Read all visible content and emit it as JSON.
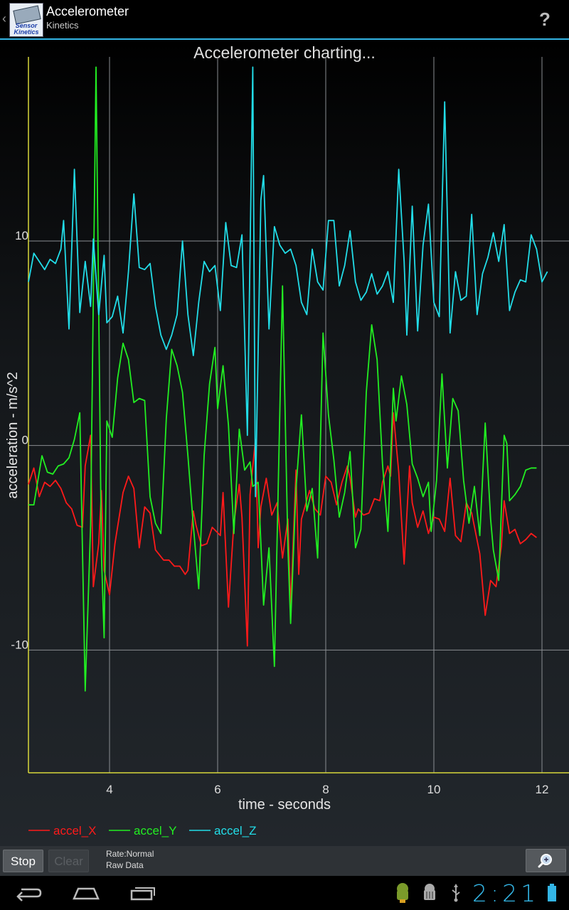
{
  "app": {
    "title": "Accelerometer",
    "subtitle": "Kinetics",
    "icon_text_1": "Sensor",
    "icon_text_2": "Kinetics",
    "help_label": "?"
  },
  "status": {
    "time": "2:21"
  },
  "controls": {
    "stop_label": "Stop",
    "clear_label": "Clear",
    "rate_label": "Rate:Normal",
    "mode_label": "Raw Data"
  },
  "colors": {
    "x": "#ff1a1a",
    "y": "#22ee22",
    "z": "#22dde8",
    "accent": "#33b5e5"
  },
  "chart_data": {
    "type": "line",
    "title": "Accelerometer charting...",
    "xlabel": "time - seconds",
    "ylabel": "acceleration - m/s^2",
    "xlim": [
      2.5,
      12.5
    ],
    "ylim": [
      -16,
      19
    ],
    "xticks": [
      4,
      6,
      8,
      10,
      12
    ],
    "yticks": [
      10,
      0,
      -10
    ],
    "legend_position": "bottom-left",
    "grid": true,
    "series": [
      {
        "name": "accel_X",
        "color": "#ff1a1a",
        "points": [
          [
            2.5,
            -1.9
          ],
          [
            2.6,
            -1.1
          ],
          [
            2.7,
            -2.5
          ],
          [
            2.8,
            -1.8
          ],
          [
            2.9,
            -2.0
          ],
          [
            3.0,
            -1.7
          ],
          [
            3.1,
            -2.1
          ],
          [
            3.2,
            -2.8
          ],
          [
            3.3,
            -3.1
          ],
          [
            3.4,
            -3.9
          ],
          [
            3.5,
            -4.0
          ],
          [
            3.55,
            -1.0
          ],
          [
            3.65,
            0.5
          ],
          [
            3.7,
            -6.9
          ],
          [
            3.8,
            -4.8
          ],
          [
            3.85,
            -2.2
          ],
          [
            3.9,
            -6.1
          ],
          [
            4.0,
            -7.3
          ],
          [
            4.1,
            -4.8
          ],
          [
            4.25,
            -2.3
          ],
          [
            4.35,
            -1.5
          ],
          [
            4.45,
            -2.1
          ],
          [
            4.55,
            -5.0
          ],
          [
            4.65,
            -3.0
          ],
          [
            4.75,
            -3.3
          ],
          [
            4.85,
            -5.1
          ],
          [
            5.0,
            -5.6
          ],
          [
            5.1,
            -5.6
          ],
          [
            5.2,
            -5.9
          ],
          [
            5.3,
            -5.9
          ],
          [
            5.4,
            -6.3
          ],
          [
            5.45,
            -6.1
          ],
          [
            5.55,
            -3.2
          ],
          [
            5.6,
            -3.9
          ],
          [
            5.7,
            -4.9
          ],
          [
            5.8,
            -4.8
          ],
          [
            5.9,
            -4.0
          ],
          [
            6.05,
            -4.4
          ],
          [
            6.1,
            -2.3
          ],
          [
            6.2,
            -7.9
          ],
          [
            6.3,
            -3.8
          ],
          [
            6.4,
            -1.9
          ],
          [
            6.45,
            -3.5
          ],
          [
            6.55,
            -9.8
          ],
          [
            6.6,
            -2.4
          ],
          [
            6.7,
            0.3
          ],
          [
            6.75,
            -5.0
          ],
          [
            6.8,
            -3.0
          ],
          [
            6.9,
            -1.6
          ],
          [
            7.0,
            -3.4
          ],
          [
            7.1,
            -2.8
          ],
          [
            7.2,
            -5.5
          ],
          [
            7.3,
            -3.6
          ],
          [
            7.35,
            -7.9
          ],
          [
            7.45,
            -1.2
          ],
          [
            7.5,
            -6.3
          ],
          [
            7.55,
            -3.6
          ],
          [
            7.7,
            -2.2
          ],
          [
            7.8,
            -3.1
          ],
          [
            7.9,
            -3.4
          ],
          [
            8.0,
            -1.5
          ],
          [
            8.1,
            -1.8
          ],
          [
            8.2,
            -2.9
          ],
          [
            8.3,
            -1.8
          ],
          [
            8.4,
            -1.0
          ],
          [
            8.45,
            -1.6
          ],
          [
            8.55,
            -3.5
          ],
          [
            8.6,
            -3.1
          ],
          [
            8.7,
            -3.4
          ],
          [
            8.8,
            -3.3
          ],
          [
            8.9,
            -2.6
          ],
          [
            9.0,
            -2.7
          ],
          [
            9.05,
            -1.8
          ],
          [
            9.15,
            -1.0
          ],
          [
            9.2,
            -1.5
          ],
          [
            9.25,
            1.6
          ],
          [
            9.35,
            -1.3
          ],
          [
            9.45,
            -5.8
          ],
          [
            9.55,
            -1.0
          ],
          [
            9.6,
            -2.8
          ],
          [
            9.7,
            -4.0
          ],
          [
            9.8,
            -3.2
          ],
          [
            9.9,
            -4.3
          ],
          [
            10.0,
            -3.5
          ],
          [
            10.1,
            -3.6
          ],
          [
            10.2,
            -4.2
          ],
          [
            10.3,
            -1.6
          ],
          [
            10.4,
            -4.4
          ],
          [
            10.5,
            -4.7
          ],
          [
            10.6,
            -2.8
          ],
          [
            10.7,
            -3.3
          ],
          [
            10.85,
            -5.3
          ],
          [
            10.95,
            -8.3
          ],
          [
            11.05,
            -6.6
          ],
          [
            11.15,
            -6.9
          ],
          [
            11.25,
            -4.9
          ],
          [
            11.3,
            -2.7
          ],
          [
            11.4,
            -4.3
          ],
          [
            11.5,
            -4.1
          ],
          [
            11.6,
            -4.8
          ],
          [
            11.7,
            -4.6
          ],
          [
            11.8,
            -4.3
          ],
          [
            11.9,
            -4.5
          ]
        ]
      },
      {
        "name": "accel_Y",
        "color": "#22ee22",
        "points": [
          [
            2.5,
            -2.9
          ],
          [
            2.6,
            -2.9
          ],
          [
            2.75,
            -0.5
          ],
          [
            2.85,
            -1.3
          ],
          [
            2.95,
            -1.4
          ],
          [
            3.05,
            -1.0
          ],
          [
            3.15,
            -0.9
          ],
          [
            3.25,
            -0.6
          ],
          [
            3.35,
            0.3
          ],
          [
            3.45,
            1.6
          ],
          [
            3.55,
            -12.0
          ],
          [
            3.65,
            -3.9
          ],
          [
            3.75,
            18.5
          ],
          [
            3.85,
            -5.3
          ],
          [
            3.9,
            -9.4
          ],
          [
            3.95,
            1.2
          ],
          [
            4.05,
            0.4
          ],
          [
            4.15,
            3.3
          ],
          [
            4.25,
            5.0
          ],
          [
            4.35,
            4.2
          ],
          [
            4.45,
            2.1
          ],
          [
            4.55,
            2.3
          ],
          [
            4.65,
            2.2
          ],
          [
            4.75,
            -2.5
          ],
          [
            4.85,
            -3.8
          ],
          [
            4.95,
            -4.3
          ],
          [
            5.05,
            1.3
          ],
          [
            5.15,
            4.7
          ],
          [
            5.25,
            3.9
          ],
          [
            5.35,
            2.6
          ],
          [
            5.45,
            -0.5
          ],
          [
            5.55,
            -3.9
          ],
          [
            5.65,
            -7.0
          ],
          [
            5.75,
            -0.5
          ],
          [
            5.85,
            3.0
          ],
          [
            5.95,
            4.8
          ],
          [
            6.0,
            1.8
          ],
          [
            6.1,
            3.9
          ],
          [
            6.2,
            1.0
          ],
          [
            6.3,
            -4.3
          ],
          [
            6.4,
            0.8
          ],
          [
            6.5,
            -1.2
          ],
          [
            6.6,
            -0.8
          ],
          [
            6.65,
            -2.0
          ],
          [
            6.75,
            -1.8
          ],
          [
            6.85,
            -7.8
          ],
          [
            6.95,
            -5.0
          ],
          [
            7.05,
            -10.8
          ],
          [
            7.2,
            7.8
          ],
          [
            7.3,
            -5.0
          ],
          [
            7.35,
            -8.7
          ],
          [
            7.45,
            -2.1
          ],
          [
            7.55,
            1.5
          ],
          [
            7.65,
            -3.2
          ],
          [
            7.75,
            -2.1
          ],
          [
            7.85,
            -5.5
          ],
          [
            7.95,
            5.5
          ],
          [
            8.05,
            1.5
          ],
          [
            8.15,
            -0.7
          ],
          [
            8.25,
            -3.5
          ],
          [
            8.35,
            -2.3
          ],
          [
            8.45,
            -0.3
          ],
          [
            8.55,
            -5.0
          ],
          [
            8.65,
            -4.1
          ],
          [
            8.75,
            2.6
          ],
          [
            8.85,
            5.9
          ],
          [
            8.95,
            4.2
          ],
          [
            9.05,
            -0.9
          ],
          [
            9.15,
            -4.2
          ],
          [
            9.25,
            2.8
          ],
          [
            9.3,
            1.2
          ],
          [
            9.4,
            3.4
          ],
          [
            9.5,
            2.0
          ],
          [
            9.6,
            -0.9
          ],
          [
            9.7,
            -1.6
          ],
          [
            9.8,
            -2.5
          ],
          [
            9.9,
            -1.8
          ],
          [
            9.95,
            -4.2
          ],
          [
            10.05,
            -1.7
          ],
          [
            10.15,
            3.5
          ],
          [
            10.25,
            -1.1
          ],
          [
            10.35,
            2.3
          ],
          [
            10.45,
            1.7
          ],
          [
            10.55,
            -1.7
          ],
          [
            10.65,
            -3.8
          ],
          [
            10.75,
            -2.0
          ],
          [
            10.85,
            -4.4
          ],
          [
            10.95,
            1.1
          ],
          [
            11.05,
            -3.6
          ],
          [
            11.1,
            -5.1
          ],
          [
            11.2,
            -6.6
          ],
          [
            11.3,
            0.5
          ],
          [
            11.35,
            0.1
          ],
          [
            11.4,
            -2.7
          ],
          [
            11.5,
            -2.4
          ],
          [
            11.6,
            -2.0
          ],
          [
            11.7,
            -1.2
          ],
          [
            11.8,
            -1.1
          ],
          [
            11.9,
            -1.1
          ]
        ]
      },
      {
        "name": "accel_Z",
        "color": "#22dde8",
        "points": [
          [
            2.5,
            8.0
          ],
          [
            2.6,
            9.4
          ],
          [
            2.7,
            9.0
          ],
          [
            2.8,
            8.6
          ],
          [
            2.9,
            9.1
          ],
          [
            3.0,
            8.9
          ],
          [
            3.1,
            9.6
          ],
          [
            3.15,
            11.0
          ],
          [
            3.25,
            5.7
          ],
          [
            3.35,
            13.5
          ],
          [
            3.45,
            6.5
          ],
          [
            3.55,
            9.0
          ],
          [
            3.65,
            6.8
          ],
          [
            3.7,
            10.1
          ],
          [
            3.8,
            6.4
          ],
          [
            3.9,
            9.3
          ],
          [
            3.95,
            6.0
          ],
          [
            4.05,
            6.3
          ],
          [
            4.15,
            7.3
          ],
          [
            4.25,
            5.5
          ],
          [
            4.35,
            8.5
          ],
          [
            4.45,
            12.3
          ],
          [
            4.55,
            8.7
          ],
          [
            4.65,
            8.6
          ],
          [
            4.75,
            8.9
          ],
          [
            4.85,
            6.8
          ],
          [
            4.95,
            5.4
          ],
          [
            5.05,
            4.7
          ],
          [
            5.15,
            5.4
          ],
          [
            5.25,
            6.4
          ],
          [
            5.35,
            10.0
          ],
          [
            5.45,
            6.4
          ],
          [
            5.55,
            4.4
          ],
          [
            5.65,
            7.0
          ],
          [
            5.75,
            9.0
          ],
          [
            5.85,
            8.5
          ],
          [
            5.95,
            8.8
          ],
          [
            6.05,
            6.6
          ],
          [
            6.15,
            10.9
          ],
          [
            6.25,
            8.8
          ],
          [
            6.35,
            8.7
          ],
          [
            6.45,
            10.3
          ],
          [
            6.55,
            0.5
          ],
          [
            6.65,
            18.5
          ],
          [
            6.7,
            -2.5
          ],
          [
            6.8,
            12.0
          ],
          [
            6.85,
            13.2
          ],
          [
            6.95,
            5.7
          ],
          [
            7.05,
            10.7
          ],
          [
            7.15,
            9.8
          ],
          [
            7.25,
            9.4
          ],
          [
            7.35,
            9.6
          ],
          [
            7.45,
            8.8
          ],
          [
            7.55,
            7.0
          ],
          [
            7.65,
            6.4
          ],
          [
            7.75,
            9.6
          ],
          [
            7.85,
            8.0
          ],
          [
            7.95,
            7.6
          ],
          [
            8.05,
            11.0
          ],
          [
            8.15,
            11.0
          ],
          [
            8.25,
            7.8
          ],
          [
            8.35,
            8.8
          ],
          [
            8.45,
            10.5
          ],
          [
            8.55,
            8.0
          ],
          [
            8.65,
            7.1
          ],
          [
            8.75,
            7.5
          ],
          [
            8.85,
            8.4
          ],
          [
            8.95,
            7.4
          ],
          [
            9.05,
            7.8
          ],
          [
            9.15,
            8.5
          ],
          [
            9.25,
            7.0
          ],
          [
            9.35,
            13.5
          ],
          [
            9.45,
            9.0
          ],
          [
            9.5,
            5.4
          ],
          [
            9.6,
            11.7
          ],
          [
            9.7,
            5.6
          ],
          [
            9.8,
            9.8
          ],
          [
            9.9,
            11.8
          ],
          [
            10.0,
            7.0
          ],
          [
            10.1,
            6.3
          ],
          [
            10.2,
            16.8
          ],
          [
            10.3,
            5.5
          ],
          [
            10.4,
            8.5
          ],
          [
            10.5,
            7.1
          ],
          [
            10.6,
            7.3
          ],
          [
            10.7,
            11.3
          ],
          [
            10.8,
            6.4
          ],
          [
            10.9,
            8.4
          ],
          [
            11.0,
            9.2
          ],
          [
            11.1,
            10.4
          ],
          [
            11.2,
            9.0
          ],
          [
            11.3,
            10.8
          ],
          [
            11.4,
            6.6
          ],
          [
            11.5,
            7.5
          ],
          [
            11.6,
            8.1
          ],
          [
            11.7,
            8.0
          ],
          [
            11.8,
            10.3
          ],
          [
            11.9,
            9.6
          ],
          [
            12.0,
            8.0
          ],
          [
            12.1,
            8.5
          ]
        ]
      }
    ]
  }
}
